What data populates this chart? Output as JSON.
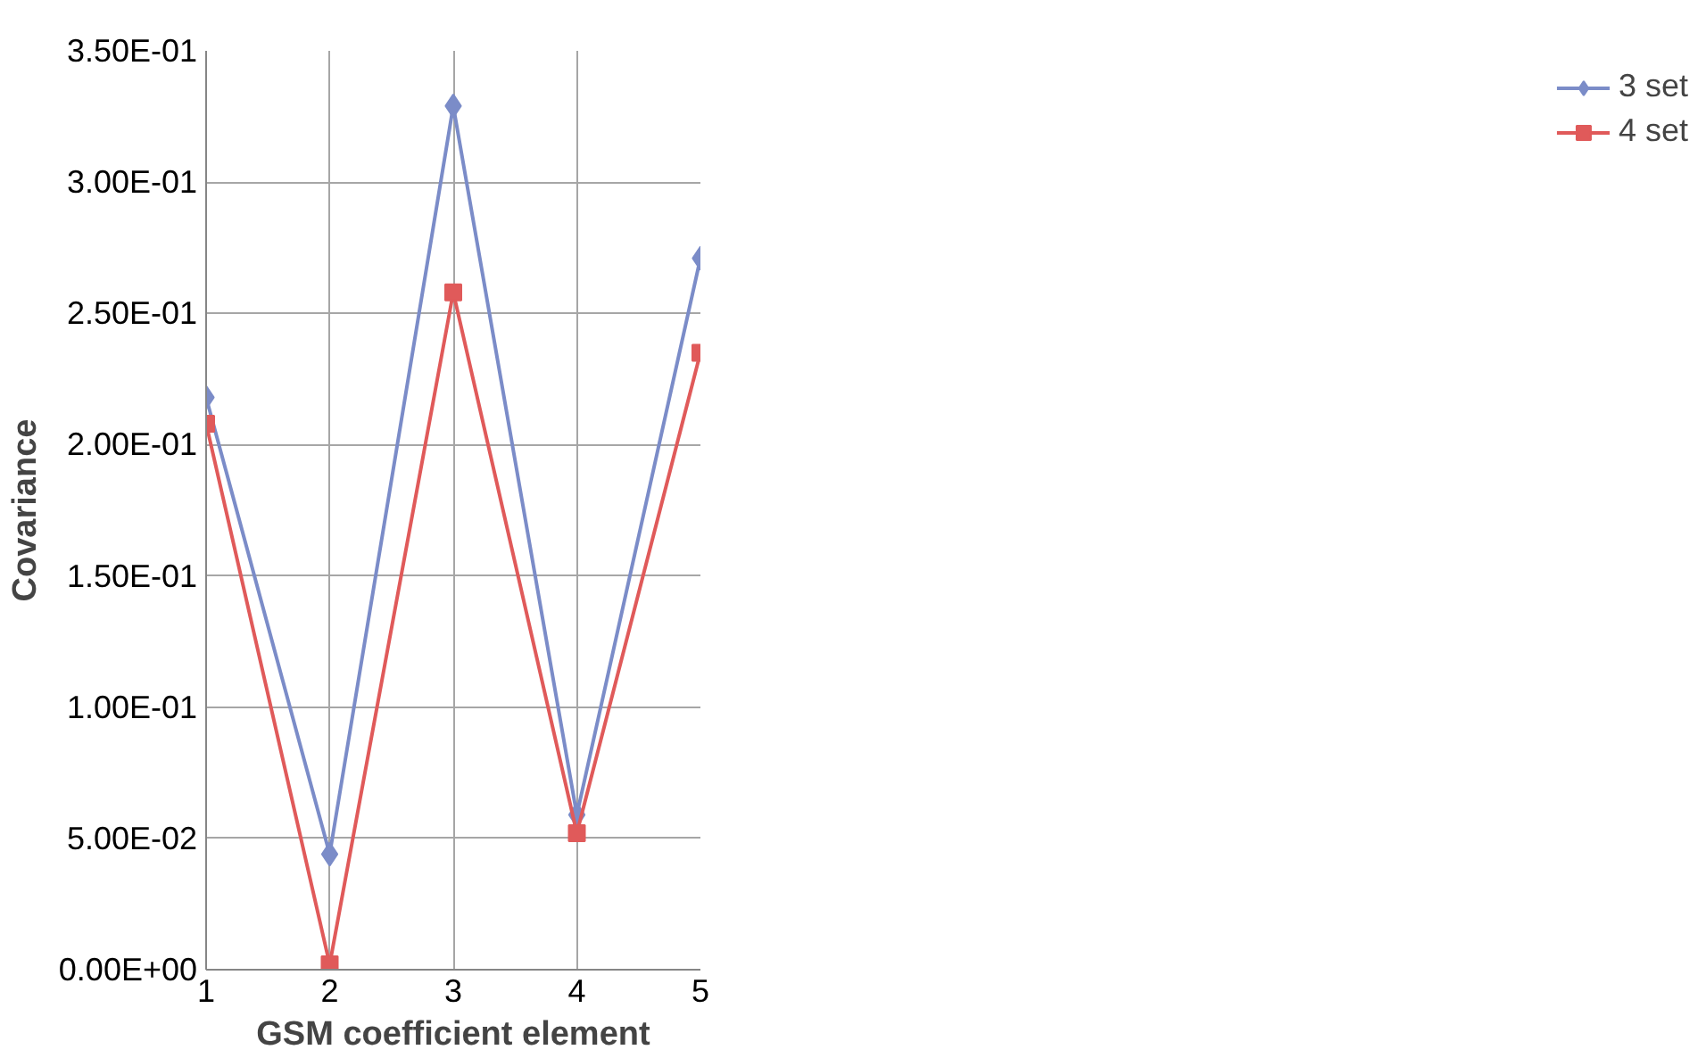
{
  "chart_data": {
    "type": "line",
    "xlabel": "GSM coefficient element",
    "ylabel": "Covariance",
    "x": [
      1,
      2,
      3,
      4,
      5
    ],
    "series": [
      {
        "name": "3 set",
        "color": "#7b8cc8",
        "marker": "diamond",
        "values": [
          0.218,
          0.044,
          0.329,
          0.059,
          0.271
        ]
      },
      {
        "name": "4 set",
        "color": "#e05a5a",
        "marker": "square",
        "values": [
          0.208,
          0.002,
          0.258,
          0.052,
          0.235
        ]
      }
    ],
    "xlim": [
      1,
      5
    ],
    "xticks": [
      1,
      2,
      3,
      4,
      5
    ],
    "ylim": [
      0,
      0.35
    ],
    "yticks": [
      {
        "value": 0,
        "label": "0.00E+00"
      },
      {
        "value": 0.05,
        "label": "5.00E-02"
      },
      {
        "value": 0.1,
        "label": "1.00E-01"
      },
      {
        "value": 0.15,
        "label": "1.50E-01"
      },
      {
        "value": 0.2,
        "label": "2.00E-01"
      },
      {
        "value": 0.25,
        "label": "2.50E-01"
      },
      {
        "value": 0.3,
        "label": "3.00E-01"
      },
      {
        "value": 0.35,
        "label": "3.50E-01"
      }
    ],
    "grid": true,
    "legend": "right"
  }
}
